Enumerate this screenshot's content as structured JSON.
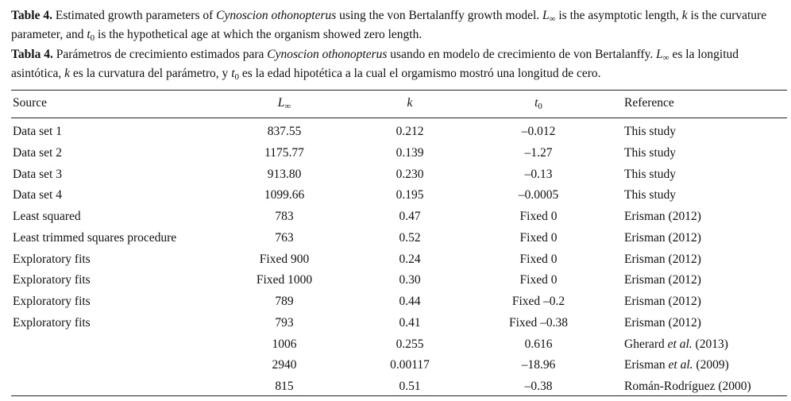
{
  "caption_en": {
    "label": "Table 4.",
    "text_1": " Estimated growth parameters of ",
    "species": "Cynoscion othonopterus",
    "text_2": " using the von Bertalanffy growth model. ",
    "sym_L": "L",
    "sym_inf": "∞",
    "text_3": " is the asymptotic length, ",
    "sym_k": "k",
    "text_4": " is the curvature parameter, and ",
    "sym_t": "t",
    "sym_0": "0",
    "text_5": " is the hypothetical age at which the organism showed zero length."
  },
  "caption_es": {
    "label": "Tabla 4.",
    "text_1": " Parámetros de crecimiento estimados para ",
    "species": "Cynoscion othonopterus",
    "text_2": " usando en modelo de crecimiento de von Bertalanffy. ",
    "sym_L": "L",
    "sym_inf": "∞",
    "text_3": " es la longitud asintótica, ",
    "sym_k": "k",
    "text_4": " es la curvatura del parámetro, y ",
    "sym_t": "t",
    "sym_0": "0",
    "text_5": " es la edad hipotética a la cual el orgamismo mostró una longitud de cero."
  },
  "table": {
    "headers": {
      "source": "Source",
      "linf_L": "L",
      "linf_sub": "∞",
      "k": "k",
      "t0_t": "t",
      "t0_sub": "0",
      "reference": "Reference"
    },
    "rows": [
      {
        "source": "Data set 1",
        "linf": "837.55",
        "k": "0.212",
        "t0": "–0.012",
        "reference": "This study"
      },
      {
        "source": "Data set 2",
        "linf": "1175.77",
        "k": "0.139",
        "t0": "–1.27",
        "reference": "This study"
      },
      {
        "source": "Data set 3",
        "linf": "913.80",
        "k": "0.230",
        "t0": "–0.13",
        "reference": "This study"
      },
      {
        "source": "Data set 4",
        "linf": "1099.66",
        "k": "0.195",
        "t0": "–0.0005",
        "reference": "This study"
      },
      {
        "source": "Least squared",
        "linf": "783",
        "k": "0.47",
        "t0": "Fixed 0",
        "reference": "Erisman (2012)"
      },
      {
        "source": "Least trimmed squares procedure",
        "linf": "763",
        "k": "0.52",
        "t0": "Fixed 0",
        "reference": "Erisman (2012)"
      },
      {
        "source": "Exploratory fits",
        "linf": "Fixed 900",
        "k": "0.24",
        "t0": "Fixed 0",
        "reference": "Erisman (2012)"
      },
      {
        "source": "Exploratory fits",
        "linf": "Fixed 1000",
        "k": "0.30",
        "t0": "Fixed 0",
        "reference": "Erisman (2012)"
      },
      {
        "source": "Exploratory fits",
        "linf": "789",
        "k": "0.44",
        "t0": "Fixed –0.2",
        "reference": "Erisman (2012)"
      },
      {
        "source": "Exploratory fits",
        "linf": "793",
        "k": "0.41",
        "t0": "Fixed –0.38",
        "reference": "Erisman (2012)"
      },
      {
        "source": "",
        "linf": "1006",
        "k": "0.255",
        "t0": "0.616",
        "reference_pre": "Gherard ",
        "reference_it": "et al.",
        "reference_post": " (2013)"
      },
      {
        "source": "",
        "linf": "2940",
        "k": "0.00117",
        "t0": "–18.96",
        "reference_pre": "Erisman ",
        "reference_it": "et al.",
        "reference_post": " (2009)"
      },
      {
        "source": "",
        "linf": "815",
        "k": "0.51",
        "t0": "–0.38",
        "reference": "Román-Rodríguez (2000)"
      }
    ]
  }
}
